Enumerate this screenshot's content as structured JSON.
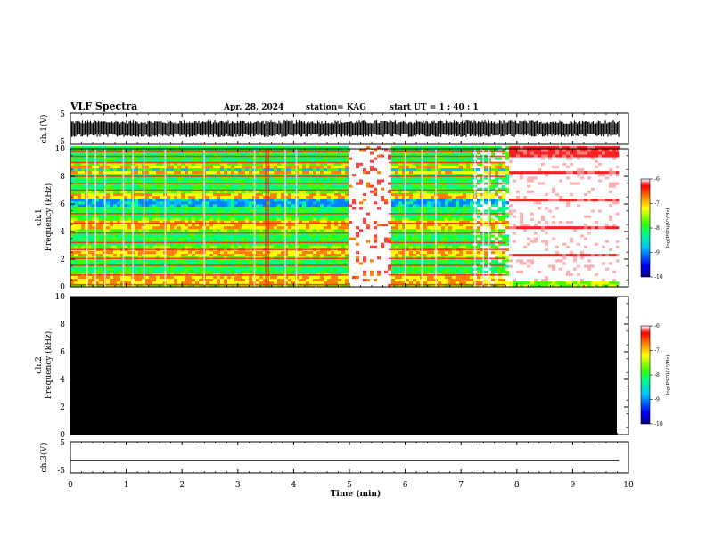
{
  "header": {
    "title": "VLF Spectra",
    "date": "Apr. 28, 2024",
    "station": "station= KAG",
    "start": "start  UT =   1 : 40 : 1"
  },
  "chart_data": [
    {
      "type": "line",
      "name": "ch1-waveform",
      "ylabel": "ch.1(V)",
      "ylim": [
        -5,
        5
      ],
      "y_ticks": [
        5,
        -5
      ],
      "x_range": [
        0,
        10
      ],
      "data_extent": [
        0,
        9.83
      ],
      "waveform": "noise band spanning about -2.5 to 2.5 V"
    },
    {
      "type": "heatmap",
      "name": "ch1-spectrogram",
      "ylabel": "ch.1\nFrequency  (kHz)",
      "ylim": [
        0,
        10
      ],
      "y_ticks": [
        0,
        2,
        4,
        6,
        8,
        10
      ],
      "x_range": [
        0,
        10
      ],
      "data_extent": [
        0,
        9.83
      ],
      "colorbar": {
        "label": "log(PSD)(V²/Hz)",
        "range": [
          -10,
          -6
        ],
        "ticks": [
          "-6",
          "-7",
          "-8",
          "-9",
          "-10"
        ]
      },
      "notes": "banded noise: green/yellow background with red harmonic lines; blue band near 6 kHz; saturated (white/red) region 5.0-5.7 min; white/red sparse pattern after 7.8 min"
    },
    {
      "type": "heatmap",
      "name": "ch2-spectrogram",
      "ylabel": "ch.2\nFrequency  (kHz)",
      "ylim": [
        0,
        10
      ],
      "y_ticks": [
        0,
        2,
        4,
        6,
        8,
        10
      ],
      "x_range": [
        0,
        10
      ],
      "data_extent": [
        0,
        9.83
      ],
      "fill": "#000000",
      "colorbar": {
        "label": "log(PSD)(V²/Hz)",
        "range": [
          -10,
          -6
        ],
        "ticks": [
          "-6",
          "-7",
          "-8",
          "-9",
          "-10"
        ]
      }
    },
    {
      "type": "line",
      "name": "ch3-waveform",
      "ylabel": "ch.3(V)",
      "ylim": [
        -5,
        5
      ],
      "y_ticks": [
        5,
        -5
      ],
      "x_range": [
        0,
        10
      ],
      "data_extent": [
        0,
        9.83
      ],
      "x": [
        0,
        9.83
      ],
      "y": [
        -1,
        -1
      ]
    }
  ],
  "x_axis": {
    "label": "Time  (min)",
    "ticks": [
      "0",
      "1",
      "2",
      "3",
      "4",
      "5",
      "6",
      "7",
      "8",
      "9",
      "10"
    ]
  },
  "colors": {
    "colormap": [
      "#00007f",
      "#0000ff",
      "#00bfff",
      "#00ff80",
      "#40ff00",
      "#ffff00",
      "#ff8000",
      "#ff0000",
      "#ffffff"
    ],
    "line": "#000000"
  }
}
